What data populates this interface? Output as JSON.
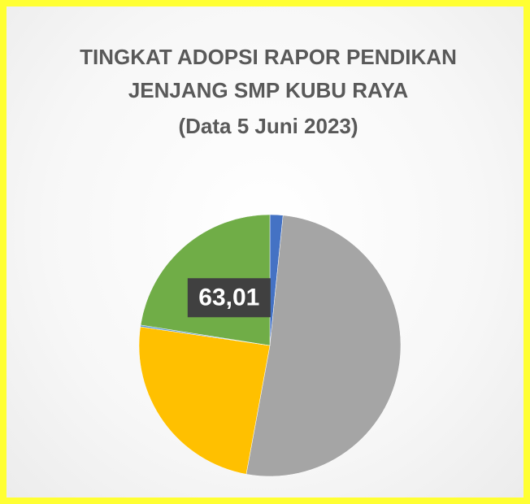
{
  "chart_data": {
    "type": "pie",
    "title": [
      "TINGKAT ADOPSI RAPOR PENDIKAN",
      "JENJANG SMP KUBU RAYA",
      "(Data 5 Juni 2023)"
    ],
    "values": [
      4.5,
      143.6,
      68.3,
      0.6,
      63.01
    ],
    "value_labels": [
      null,
      null,
      null,
      null,
      "63,01"
    ],
    "colors": [
      "#4472c4",
      "#a5a5a5",
      "#ffc000",
      "#5b9bd5",
      "#70ad47"
    ]
  }
}
